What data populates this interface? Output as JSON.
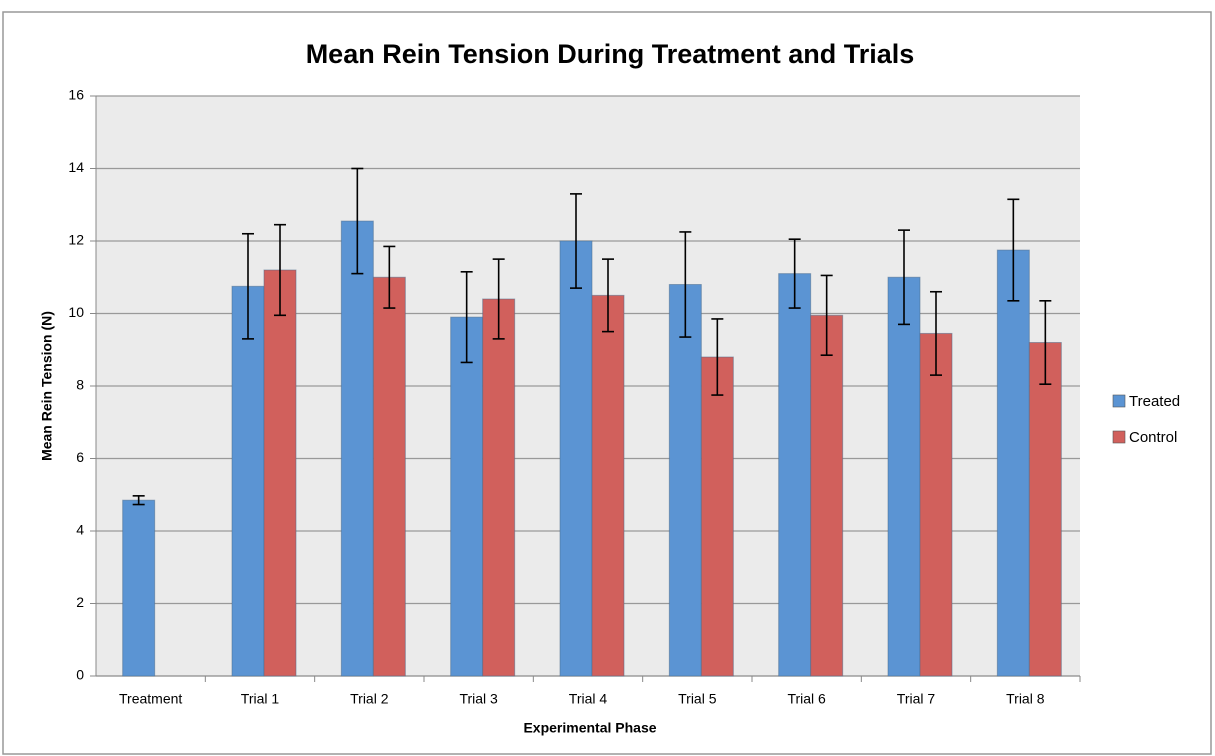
{
  "chart_data": {
    "type": "bar",
    "title": "Mean Rein Tension During Treatment and Trials",
    "x_label": "Experimental Phase",
    "y_label": "Mean Rein Tension (N)",
    "categories": [
      "Treatment",
      "Trial 1",
      "Trial 2",
      "Trial 3",
      "Trial 4",
      "Trial 5",
      "Trial 6",
      "Trial 7",
      "Trial 8"
    ],
    "series": [
      {
        "name": "Treated",
        "color": "#5b94d3",
        "values": [
          4.85,
          10.75,
          12.55,
          9.9,
          12.0,
          10.8,
          11.1,
          11.0,
          11.75
        ],
        "errors": [
          0.12,
          1.45,
          1.45,
          1.25,
          1.3,
          1.45,
          0.95,
          1.3,
          1.4
        ]
      },
      {
        "name": "Control",
        "color": "#d1605c",
        "values": [
          null,
          11.2,
          11.0,
          10.4,
          10.5,
          8.8,
          9.95,
          9.45,
          9.2
        ],
        "errors": [
          null,
          1.25,
          0.85,
          1.1,
          1.0,
          1.05,
          1.1,
          1.15,
          1.15
        ]
      }
    ],
    "ylim": [
      0,
      16
    ],
    "yticks": [
      0,
      2,
      4,
      6,
      8,
      10,
      12,
      14,
      16
    ],
    "grid": true,
    "legend": "right"
  }
}
